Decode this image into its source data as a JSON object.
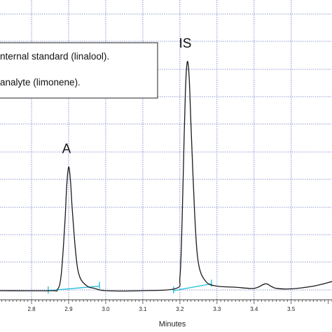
{
  "chart_data": {
    "type": "line",
    "xlabel": "Minutes",
    "xlim": [
      2.715,
      3.61
    ],
    "x_ticks": [
      "2.8",
      "2.9",
      "3.0",
      "3.1",
      "3.2",
      "3.3",
      "3.4",
      "3.5"
    ],
    "grid": true,
    "legend": {
      "placement": "top-left",
      "entries": [
        "nternal standard (linalool).",
        "analyte (limonene)."
      ]
    },
    "peaks": [
      {
        "label": "A",
        "x": 2.9,
        "relative_height": 0.54
      },
      {
        "label": "IS",
        "x": 3.22,
        "relative_height": 1.0
      }
    ],
    "series": [
      {
        "color": "#1a1a1a",
        "x": [
          2.715,
          2.85,
          2.87,
          2.88,
          2.89,
          2.895,
          2.9,
          2.905,
          2.91,
          2.92,
          2.93,
          2.95,
          2.97,
          3.0,
          3.1,
          3.19,
          3.2,
          3.205,
          3.21,
          3.215,
          3.22,
          3.225,
          3.23,
          3.24,
          3.25,
          3.27,
          3.3,
          3.35,
          3.4,
          3.43,
          3.445,
          3.46,
          3.5,
          3.56,
          3.61
        ],
        "y": [
          0,
          0,
          0.005,
          0.07,
          0.3,
          0.46,
          0.54,
          0.48,
          0.35,
          0.15,
          0.06,
          0.02,
          0.01,
          0,
          0,
          0.01,
          0.06,
          0.25,
          0.58,
          0.88,
          1.0,
          0.93,
          0.72,
          0.33,
          0.12,
          0.04,
          0.02,
          0.015,
          0.01,
          0.03,
          0.02,
          0.01,
          0.008,
          0.02,
          0.04
        ]
      }
    ],
    "baselines": [
      {
        "color": "#33c4dd",
        "x": [
          2.845,
          2.983
        ],
        "y": [
          0.0,
          0.02
        ]
      },
      {
        "color": "#33c4dd",
        "x": [
          3.183,
          3.285
        ],
        "y": [
          0.0,
          0.03
        ]
      }
    ]
  }
}
